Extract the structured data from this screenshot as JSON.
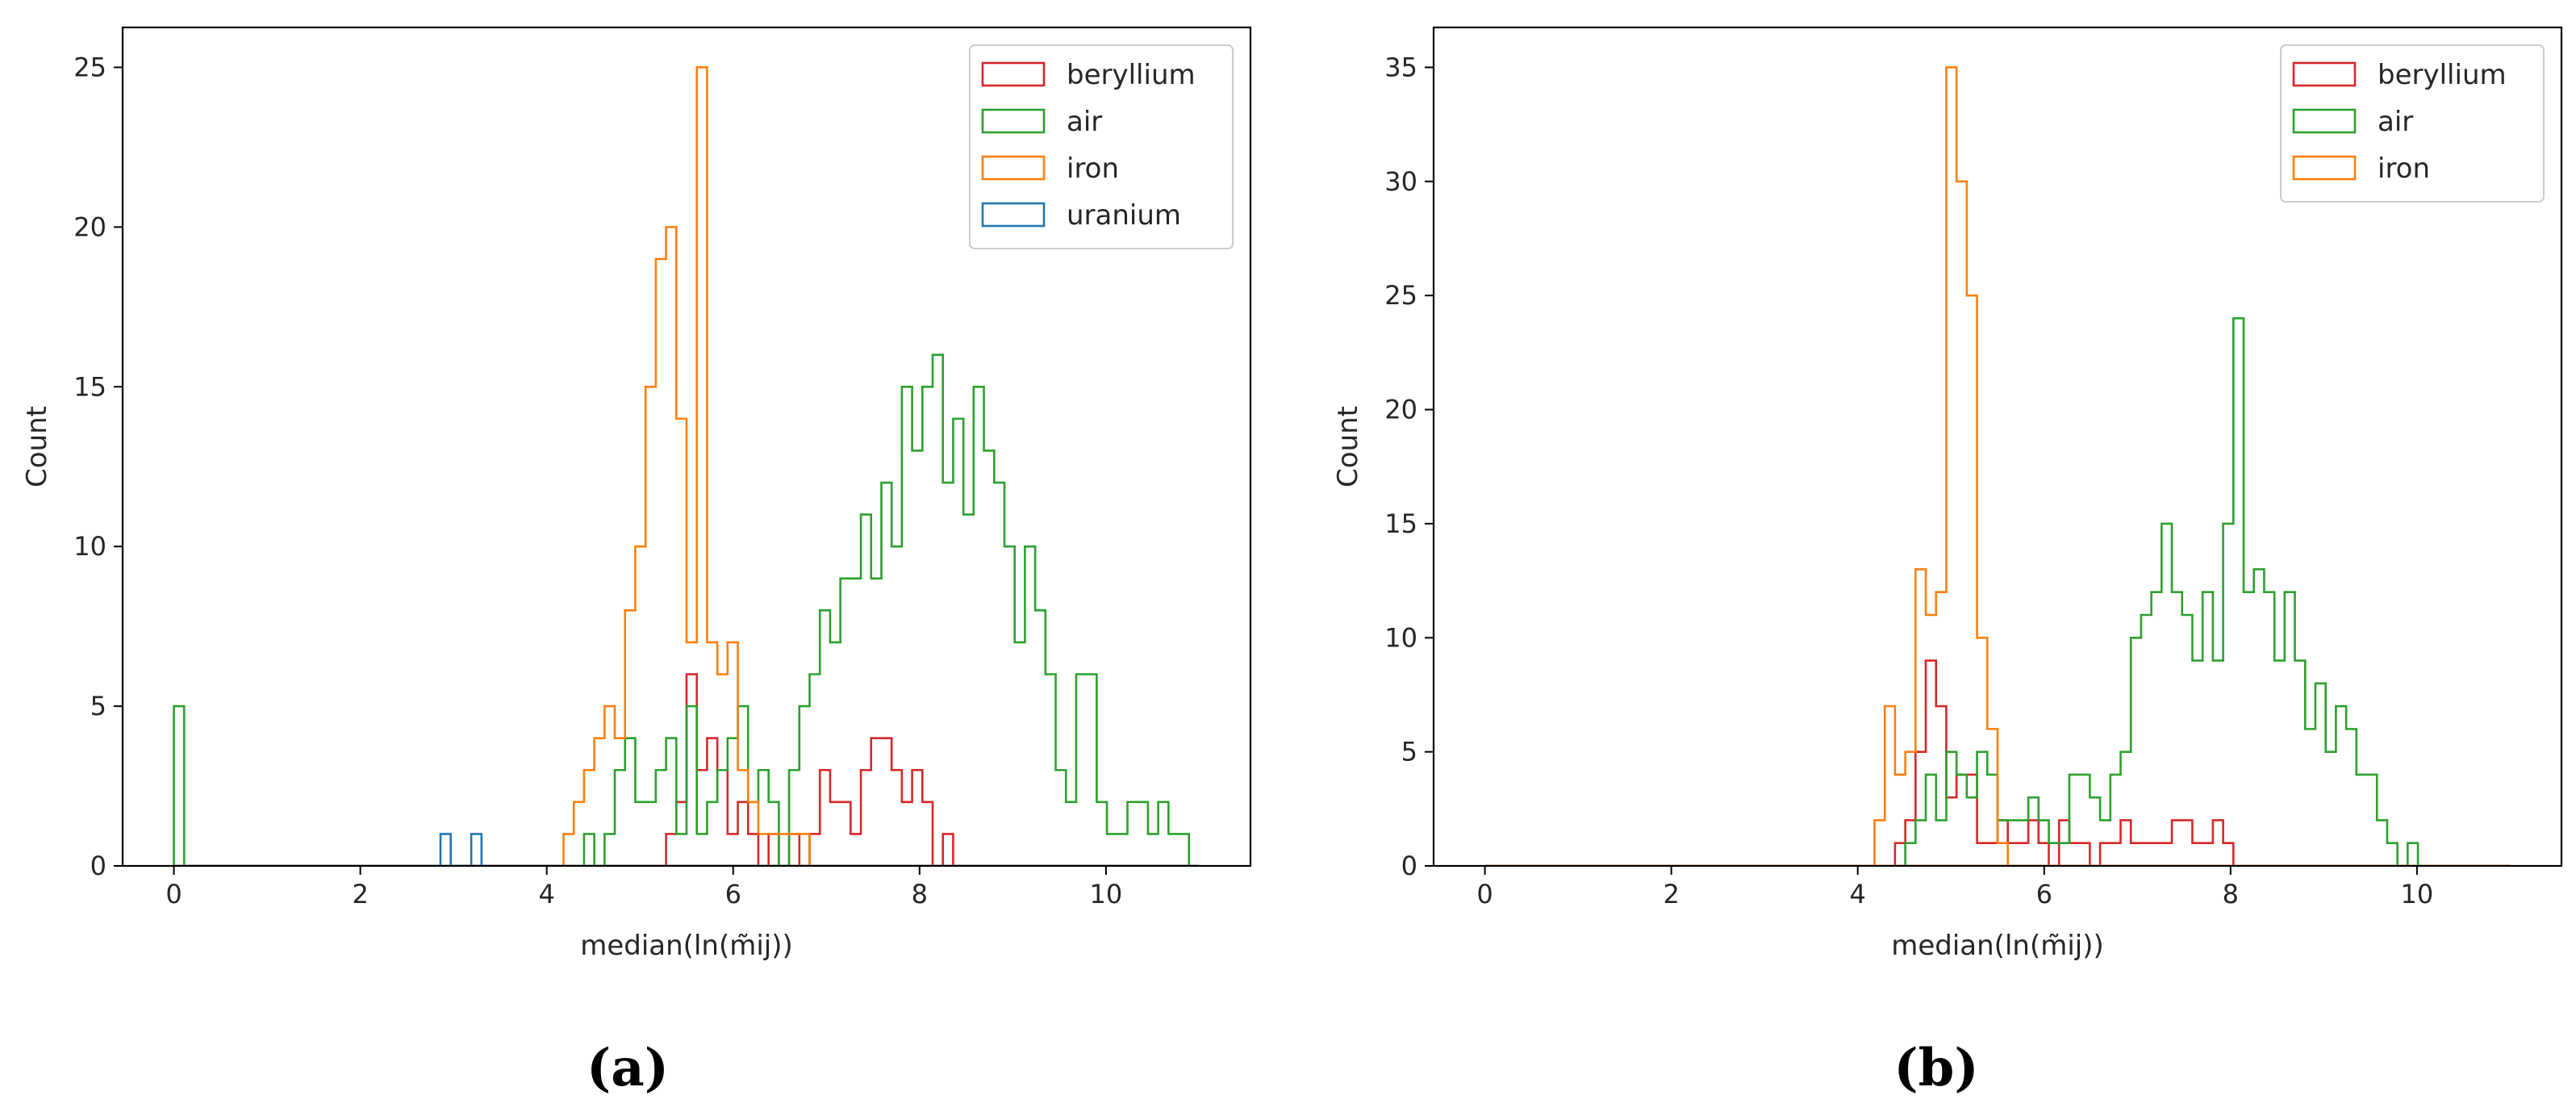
{
  "chart_data": [
    {
      "type": "histogram",
      "panel_label": "(a)",
      "xlabel": "median(ln(m̃ij))",
      "ylabel": "Count",
      "xlim": [
        -0.55,
        11.55
      ],
      "ylim": [
        0,
        26.25
      ],
      "xticks": [
        0,
        2,
        4,
        6,
        8,
        10
      ],
      "yticks": [
        0,
        5,
        10,
        15,
        20,
        25
      ],
      "grid": false,
      "legend_position": "top-right",
      "bins": {
        "start": 0,
        "width": 0.11,
        "count": 100
      },
      "series": [
        {
          "name": "beryllium",
          "color": "#d62728",
          "bars": [
            [
              5.28,
              1
            ],
            [
              5.39,
              2
            ],
            [
              5.5,
              6
            ],
            [
              5.61,
              3
            ],
            [
              5.72,
              4
            ],
            [
              5.83,
              3
            ],
            [
              5.94,
              1
            ],
            [
              6.05,
              2
            ],
            [
              6.16,
              1
            ],
            [
              6.27,
              0
            ],
            [
              6.38,
              1
            ],
            [
              6.49,
              0
            ],
            [
              6.6,
              1
            ],
            [
              6.71,
              0
            ],
            [
              6.82,
              1
            ],
            [
              6.93,
              3
            ],
            [
              7.04,
              2
            ],
            [
              7.15,
              2
            ],
            [
              7.26,
              1
            ],
            [
              7.37,
              3
            ],
            [
              7.48,
              4
            ],
            [
              7.59,
              4
            ],
            [
              7.7,
              3
            ],
            [
              7.81,
              2
            ],
            [
              7.92,
              3
            ],
            [
              8.03,
              2
            ],
            [
              8.14,
              0
            ],
            [
              8.25,
              1
            ]
          ]
        },
        {
          "name": "air",
          "color": "#2ca02c",
          "bars": [
            [
              0,
              5
            ],
            [
              4.4,
              1
            ],
            [
              4.62,
              1
            ],
            [
              4.73,
              3
            ],
            [
              4.84,
              4
            ],
            [
              4.95,
              2
            ],
            [
              5.06,
              2
            ],
            [
              5.17,
              3
            ],
            [
              5.28,
              4
            ],
            [
              5.39,
              1
            ],
            [
              5.5,
              5
            ],
            [
              5.61,
              1
            ],
            [
              5.72,
              2
            ],
            [
              5.83,
              3
            ],
            [
              5.94,
              4
            ],
            [
              6.05,
              5
            ],
            [
              6.16,
              2
            ],
            [
              6.27,
              3
            ],
            [
              6.38,
              2
            ],
            [
              6.49,
              0
            ],
            [
              6.6,
              3
            ],
            [
              6.71,
              5
            ],
            [
              6.82,
              6
            ],
            [
              6.93,
              8
            ],
            [
              7.04,
              7
            ],
            [
              7.15,
              9
            ],
            [
              7.26,
              9
            ],
            [
              7.37,
              11
            ],
            [
              7.48,
              9
            ],
            [
              7.59,
              12
            ],
            [
              7.7,
              10
            ],
            [
              7.81,
              15
            ],
            [
              7.92,
              13
            ],
            [
              8.03,
              15
            ],
            [
              8.14,
              16
            ],
            [
              8.25,
              12
            ],
            [
              8.36,
              14
            ],
            [
              8.47,
              11
            ],
            [
              8.58,
              15
            ],
            [
              8.69,
              13
            ],
            [
              8.8,
              12
            ],
            [
              8.91,
              10
            ],
            [
              9.02,
              7
            ],
            [
              9.13,
              10
            ],
            [
              9.24,
              8
            ],
            [
              9.35,
              6
            ],
            [
              9.46,
              3
            ],
            [
              9.57,
              2
            ],
            [
              9.68,
              6
            ],
            [
              9.79,
              6
            ],
            [
              9.9,
              2
            ],
            [
              10.01,
              1
            ],
            [
              10.12,
              1
            ],
            [
              10.23,
              2
            ],
            [
              10.34,
              2
            ],
            [
              10.45,
              1
            ],
            [
              10.56,
              2
            ],
            [
              10.67,
              1
            ],
            [
              10.78,
              1
            ]
          ]
        },
        {
          "name": "iron",
          "color": "#ff7f0e",
          "bars": [
            [
              4.18,
              1
            ],
            [
              4.29,
              2
            ],
            [
              4.4,
              3
            ],
            [
              4.51,
              4
            ],
            [
              4.62,
              5
            ],
            [
              4.73,
              4
            ],
            [
              4.84,
              8
            ],
            [
              4.95,
              10
            ],
            [
              5.06,
              15
            ],
            [
              5.17,
              19
            ],
            [
              5.28,
              20
            ],
            [
              5.39,
              14
            ],
            [
              5.5,
              7
            ],
            [
              5.61,
              25
            ],
            [
              5.72,
              7
            ],
            [
              5.83,
              6
            ],
            [
              5.94,
              7
            ],
            [
              6.05,
              3
            ],
            [
              6.16,
              2
            ],
            [
              6.27,
              1
            ],
            [
              6.38,
              1
            ],
            [
              6.49,
              1
            ],
            [
              6.6,
              1
            ],
            [
              6.71,
              1
            ]
          ]
        },
        {
          "name": "uranium",
          "color": "#1f77b4",
          "bars": [
            [
              2.86,
              1
            ],
            [
              2.97,
              0
            ],
            [
              3.08,
              0
            ],
            [
              3.19,
              1
            ]
          ]
        }
      ]
    },
    {
      "type": "histogram",
      "panel_label": "(b)",
      "xlabel": "median(ln(m̃ij))",
      "ylabel": "Count",
      "xlim": [
        -0.55,
        11.55
      ],
      "ylim": [
        0,
        36.75
      ],
      "xticks": [
        0,
        2,
        4,
        6,
        8,
        10
      ],
      "yticks": [
        0,
        5,
        10,
        15,
        20,
        25,
        30,
        35
      ],
      "grid": false,
      "legend_position": "top-right",
      "bins": {
        "start": 0,
        "width": 0.11,
        "count": 100
      },
      "series": [
        {
          "name": "beryllium",
          "color": "#d62728",
          "bars": [
            [
              4.4,
              1
            ],
            [
              4.51,
              2
            ],
            [
              4.62,
              5
            ],
            [
              4.73,
              9
            ],
            [
              4.84,
              7
            ],
            [
              4.95,
              3
            ],
            [
              5.06,
              4
            ],
            [
              5.17,
              4
            ],
            [
              5.28,
              1
            ],
            [
              5.39,
              1
            ],
            [
              5.5,
              2
            ],
            [
              5.61,
              1
            ],
            [
              5.72,
              1
            ],
            [
              5.83,
              2
            ],
            [
              5.94,
              1
            ],
            [
              6.05,
              0
            ],
            [
              6.16,
              2
            ],
            [
              6.27,
              1
            ],
            [
              6.38,
              1
            ],
            [
              6.49,
              0
            ],
            [
              6.6,
              1
            ],
            [
              6.71,
              1
            ],
            [
              6.82,
              2
            ],
            [
              6.93,
              1
            ],
            [
              7.04,
              1
            ],
            [
              7.15,
              1
            ],
            [
              7.26,
              1
            ],
            [
              7.37,
              2
            ],
            [
              7.48,
              2
            ],
            [
              7.59,
              1
            ],
            [
              7.7,
              1
            ],
            [
              7.81,
              2
            ],
            [
              7.92,
              1
            ]
          ]
        },
        {
          "name": "air",
          "color": "#2ca02c",
          "bars": [
            [
              4.51,
              1
            ],
            [
              4.62,
              2
            ],
            [
              4.73,
              4
            ],
            [
              4.84,
              2
            ],
            [
              4.95,
              5
            ],
            [
              5.06,
              4
            ],
            [
              5.17,
              3
            ],
            [
              5.28,
              5
            ],
            [
              5.39,
              4
            ],
            [
              5.5,
              2
            ],
            [
              5.61,
              2
            ],
            [
              5.72,
              2
            ],
            [
              5.83,
              3
            ],
            [
              5.94,
              2
            ],
            [
              6.05,
              1
            ],
            [
              6.16,
              1
            ],
            [
              6.27,
              4
            ],
            [
              6.38,
              4
            ],
            [
              6.49,
              3
            ],
            [
              6.6,
              2
            ],
            [
              6.71,
              4
            ],
            [
              6.82,
              5
            ],
            [
              6.93,
              10
            ],
            [
              7.04,
              11
            ],
            [
              7.15,
              12
            ],
            [
              7.26,
              15
            ],
            [
              7.37,
              12
            ],
            [
              7.48,
              11
            ],
            [
              7.59,
              9
            ],
            [
              7.7,
              12
            ],
            [
              7.81,
              9
            ],
            [
              7.92,
              15
            ],
            [
              8.03,
              24
            ],
            [
              8.14,
              12
            ],
            [
              8.25,
              13
            ],
            [
              8.36,
              12
            ],
            [
              8.47,
              9
            ],
            [
              8.58,
              12
            ],
            [
              8.69,
              9
            ],
            [
              8.8,
              6
            ],
            [
              8.91,
              8
            ],
            [
              9.02,
              5
            ],
            [
              9.13,
              7
            ],
            [
              9.24,
              6
            ],
            [
              9.35,
              4
            ],
            [
              9.46,
              4
            ],
            [
              9.57,
              2
            ],
            [
              9.68,
              1
            ],
            [
              9.79,
              0
            ],
            [
              9.9,
              1
            ]
          ]
        },
        {
          "name": "iron",
          "color": "#ff7f0e",
          "bars": [
            [
              4.18,
              2
            ],
            [
              4.29,
              7
            ],
            [
              4.4,
              4
            ],
            [
              4.51,
              5
            ],
            [
              4.62,
              13
            ],
            [
              4.73,
              11
            ],
            [
              4.84,
              12
            ],
            [
              4.95,
              35
            ],
            [
              5.06,
              30
            ],
            [
              5.17,
              25
            ],
            [
              5.28,
              10
            ],
            [
              5.39,
              6
            ],
            [
              5.5,
              1
            ]
          ]
        }
      ]
    }
  ]
}
